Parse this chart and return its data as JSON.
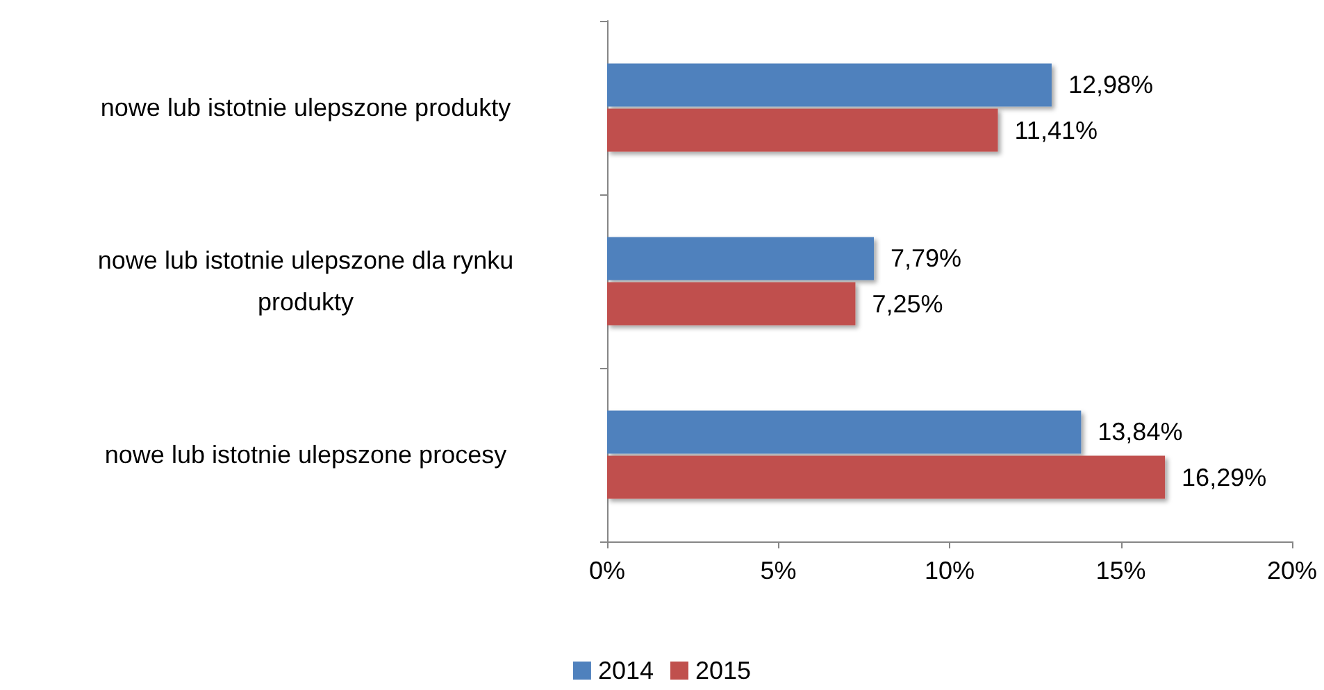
{
  "chart_data": {
    "type": "bar",
    "orientation": "horizontal",
    "categories": [
      "nowe lub istotnie ulepszone produkty",
      "nowe lub istotnie ulepszone dla rynku\nprodukty",
      "nowe lub istotnie ulepszone procesy"
    ],
    "series": [
      {
        "name": "2014",
        "color": "#4f81bd",
        "values": [
          12.98,
          7.79,
          13.84
        ],
        "value_labels": [
          "12,98%",
          "7,79%",
          "13,84%"
        ]
      },
      {
        "name": "2015",
        "color": "#c0504d",
        "values": [
          11.41,
          7.25,
          16.29
        ],
        "value_labels": [
          "11,41%",
          "7,25%",
          "16,29%"
        ]
      }
    ],
    "xlim": [
      0,
      20
    ],
    "xticks": [
      {
        "value": 0,
        "label": "0%"
      },
      {
        "value": 5,
        "label": "5%"
      },
      {
        "value": 10,
        "label": "10%"
      },
      {
        "value": 15,
        "label": "15%"
      },
      {
        "value": 20,
        "label": "20%"
      }
    ],
    "grid": false,
    "legend": "bottom"
  }
}
